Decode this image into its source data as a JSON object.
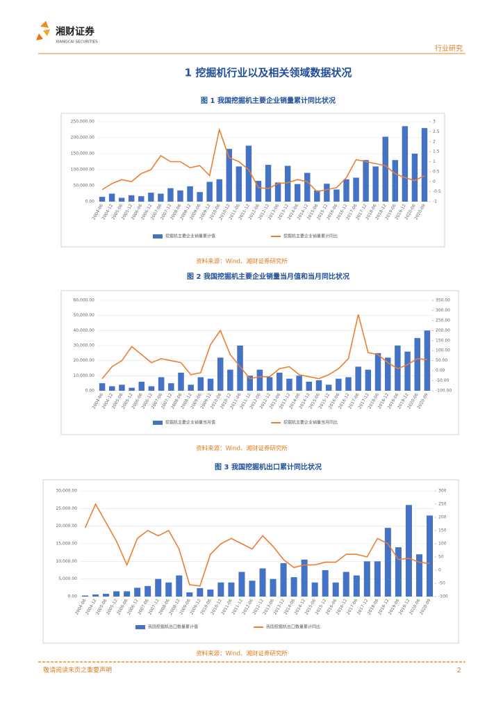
{
  "header": {
    "logo_cn": "湘财证券",
    "logo_en": "XIANGCAI SECURITIES",
    "tag": "行业研究"
  },
  "section_title": "1 挖掘机行业以及相关领域数据状况",
  "chart_data": [
    {
      "type": "bar_line",
      "title": "图 1 我国挖掘机主要企业销量累计同比状况",
      "source": "资料来源：Wind、湘财证券研究所",
      "categories": [
        "2004-06",
        "2004-12",
        "2005-06",
        "2005-12",
        "2006-06",
        "2006-12",
        "2007-06",
        "2007-12",
        "2008-06",
        "2008-12",
        "2009-06",
        "2009-12",
        "2010-06",
        "2010-12",
        "2011-06",
        "2011-12",
        "2012-06",
        "2012-12",
        "2013-06",
        "2013-12",
        "2014-06",
        "2014-12",
        "2015-06",
        "2015-12",
        "2016-06",
        "2016-12",
        "2017-06",
        "2017-12",
        "2018-06",
        "2018-12",
        "2019-06",
        "2019-12",
        "2020-06",
        "2020-09"
      ],
      "series": [
        {
          "name": "挖掘机主要企业销量累计值",
          "color": "#4472c4",
          "values": [
            15000,
            25000,
            12000,
            20000,
            17000,
            28000,
            25000,
            42000,
            35000,
            48000,
            30000,
            62000,
            70000,
            165000,
            110000,
            175000,
            65000,
            115000,
            60000,
            112000,
            55000,
            90000,
            35000,
            56000,
            38000,
            70000,
            75000,
            130000,
            110000,
            203000,
            130000,
            236000,
            150000,
            230000
          ]
        },
        {
          "name": "挖掘机主要企业销量累计同比",
          "color": "#ed7d31",
          "axis": "y2",
          "values": [
            -0.4,
            -0.1,
            0.1,
            0,
            0.4,
            0.6,
            1.3,
            1,
            1,
            0.7,
            0.8,
            0.3,
            2.6,
            1.2,
            1,
            0.6,
            -0.3,
            -0.35,
            -0.1,
            -0.05,
            0.1,
            0,
            -0.5,
            -0.4,
            -0.3,
            0.2,
            1.1,
            1,
            0.9,
            0.8,
            0.4,
            0.2,
            0.05,
            0.3
          ]
        }
      ],
      "ylim": [
        0,
        250000
      ],
      "yticks": [
        {
          "value": 0,
          "label": "0.00"
        },
        {
          "value": 50000,
          "label": "50,000.00"
        },
        {
          "value": 100000,
          "label": "100,000.00"
        },
        {
          "value": 150000,
          "label": "150,000.00"
        },
        {
          "value": 200000,
          "label": "200,000.00"
        },
        {
          "value": 250000,
          "label": "250,000.00"
        }
      ],
      "y2lim": [
        -1,
        3
      ],
      "y2ticks": [
        -1,
        -0.5,
        0,
        0.5,
        1,
        1.5,
        2,
        2.5,
        3
      ]
    },
    {
      "type": "bar_line",
      "title": "图 2 我国挖掘机主要企业销量当月值和当月同比状况",
      "source": "资料来源：Wind、湘财证券研究所",
      "categories": [
        "2004-06",
        "2004-12",
        "2005-06",
        "2005-12",
        "2006-06",
        "2006-12",
        "2007-06",
        "2007-12",
        "2008-06",
        "2008-12",
        "2009-06",
        "2009-12",
        "2010-06",
        "2010-12",
        "2011-06",
        "2011-12",
        "2012-06",
        "2012-12",
        "2013-06",
        "2013-12",
        "2014-06",
        "2014-12",
        "2015-06",
        "2015-12",
        "2016-06",
        "2016-12",
        "2017-06",
        "2017-12",
        "2018-06",
        "2018-12",
        "2019-06",
        "2019-12",
        "2020-06",
        "2020-09"
      ],
      "series": [
        {
          "name": "挖掘机主要企业销量当月值",
          "color": "#4472c4",
          "values": [
            5000,
            3000,
            4000,
            2000,
            6000,
            3000,
            9000,
            5000,
            12000,
            4000,
            9000,
            8000,
            22000,
            14000,
            30000,
            10000,
            14000,
            9000,
            12000,
            8000,
            10000,
            6000,
            7000,
            4000,
            8000,
            9000,
            16000,
            14000,
            25000,
            22000,
            30000,
            26000,
            35000,
            40000
          ]
        },
        {
          "name": "挖掘机主要企业销量当月同比",
          "color": "#ed7d31",
          "axis": "y2",
          "values": [
            -40,
            20,
            50,
            120,
            80,
            40,
            60,
            50,
            40,
            -20,
            -10,
            130,
            200,
            80,
            20,
            -40,
            -30,
            -30,
            10,
            20,
            -20,
            -30,
            -40,
            -20,
            10,
            60,
            280,
            90,
            80,
            40,
            10,
            30,
            60,
            55
          ]
        }
      ],
      "ylim": [
        0,
        60000
      ],
      "yticks": [
        {
          "value": 0,
          "label": "0.00"
        },
        {
          "value": 10000,
          "label": "10,000.00"
        },
        {
          "value": 20000,
          "label": "20,000.00"
        },
        {
          "value": 30000,
          "label": "30,000.00"
        },
        {
          "value": 40000,
          "label": "40,000.00"
        },
        {
          "value": 50000,
          "label": "50,000.00"
        },
        {
          "value": 60000,
          "label": "60,000.00"
        }
      ],
      "y2lim": [
        -100,
        350
      ],
      "y2ticks": [
        {
          "value": -100,
          "label": "-100.00"
        },
        {
          "value": -50,
          "label": "-50.00"
        },
        {
          "value": 0,
          "label": "0.00"
        },
        {
          "value": 50,
          "label": "50.00"
        },
        {
          "value": 100,
          "label": "100.00"
        },
        {
          "value": 150,
          "label": "150.00"
        },
        {
          "value": 200,
          "label": "200.00"
        },
        {
          "value": 250,
          "label": "250.00"
        },
        {
          "value": 300,
          "label": "300.00"
        },
        {
          "value": 350,
          "label": "350.00"
        }
      ]
    },
    {
      "type": "bar_line",
      "title": "图 3 我国挖掘机出口累计同比状况",
      "source": "资料来源：Wind、湘财证券研究所",
      "categories": [
        "2004-06",
        "2004-12",
        "2005-06",
        "2005-12",
        "2006-06",
        "2006-12",
        "2007-06",
        "2007-12",
        "2008-06",
        "2008-12",
        "2009-06",
        "2009-12",
        "2010-06",
        "2010-12",
        "2011-06",
        "2011-12",
        "2012-06",
        "2012-12",
        "2013-06",
        "2013-12",
        "2014-06",
        "2014-12",
        "2015-06",
        "2015-12",
        "2016-06",
        "2016-12",
        "2017-06",
        "2017-12",
        "2018-06",
        "2018-12",
        "2019-06",
        "2019-12",
        "2020-06",
        "2020-09"
      ],
      "series": [
        {
          "name": "我国挖掘机出口数量累计值",
          "color": "#4472c4",
          "values": [
            300,
            600,
            800,
            1500,
            1500,
            2500,
            3000,
            5000,
            4000,
            6000,
            1200,
            2400,
            2000,
            4000,
            4000,
            7000,
            4500,
            8000,
            5000,
            9500,
            5500,
            10500,
            4000,
            7500,
            4000,
            7000,
            6000,
            10000,
            10000,
            19500,
            14000,
            26000,
            12000,
            23000
          ]
        },
        {
          "name": "我国挖掘机出口数量累计同比",
          "color": "#ed7d31",
          "axis": "y2",
          "values": [
            160,
            250,
            180,
            110,
            20,
            120,
            150,
            130,
            150,
            80,
            -55,
            -60,
            60,
            100,
            120,
            100,
            80,
            130,
            90,
            40,
            10,
            20,
            20,
            30,
            30,
            60,
            60,
            50,
            120,
            100,
            40,
            45,
            30,
            25
          ]
        }
      ],
      "ylim": [
        0,
        30000
      ],
      "yticks": [
        {
          "value": 0,
          "label": "0.00"
        },
        {
          "value": 5000,
          "label": "5,000.00"
        },
        {
          "value": 10000,
          "label": "10,000.00"
        },
        {
          "value": 15000,
          "label": "15,000.00"
        },
        {
          "value": 20000,
          "label": "20,000.00"
        },
        {
          "value": 25000,
          "label": "25,000.00"
        },
        {
          "value": 30000,
          "label": "30,000.00"
        }
      ],
      "y2lim": [
        -100,
        300
      ],
      "y2ticks": [
        -100,
        -50,
        0,
        50,
        100,
        150,
        200,
        250,
        300
      ]
    }
  ],
  "footer": {
    "disclaimer": "敬请阅读末页之重要声明",
    "page": "2"
  }
}
